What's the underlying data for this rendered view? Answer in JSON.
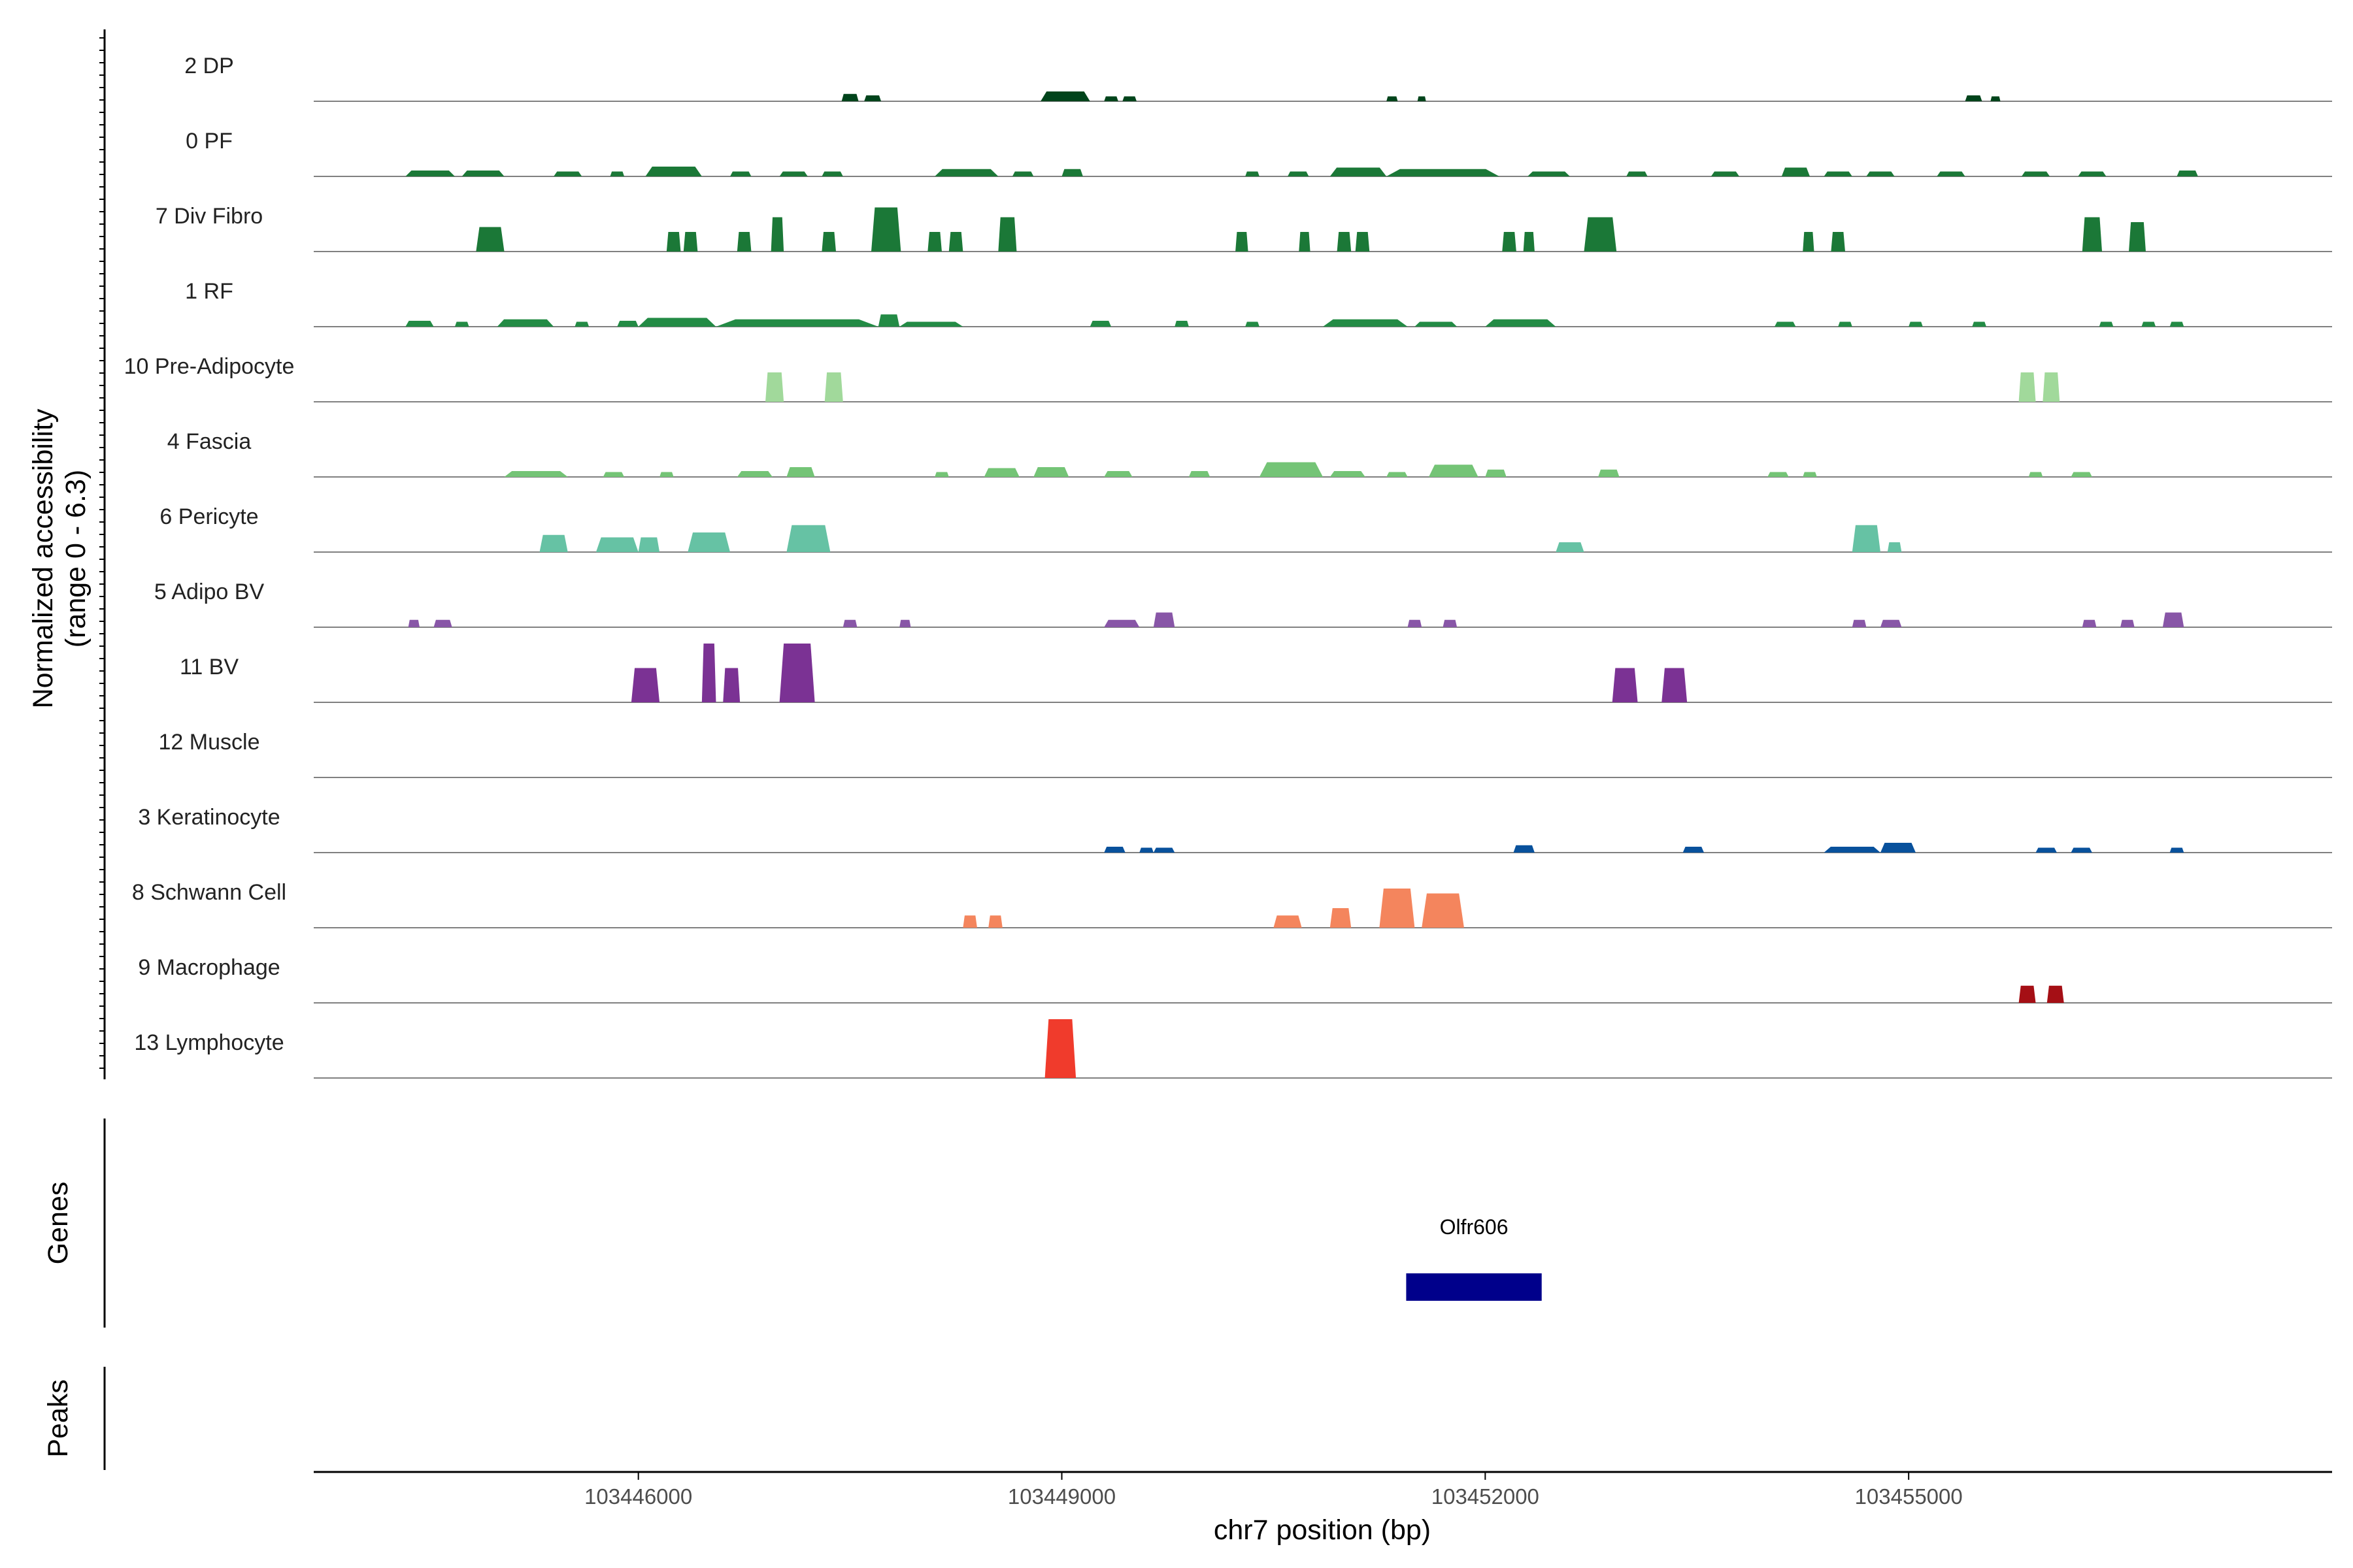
{
  "chart_data": {
    "type": "area",
    "title": "",
    "xlabel": "chr7 position (bp)",
    "ylabel": "Normalized accessibility",
    "ylabel_range": "(range 0 - 6.3)",
    "xlim": [
      103443700,
      103458000
    ],
    "ylim": [
      0,
      6.3
    ],
    "x_ticks": [
      103446000,
      103449000,
      103452000,
      103455000
    ],
    "x_tick_labels": [
      "103446000",
      "103449000",
      "103452000",
      "103455000"
    ],
    "grid": false,
    "legend": "none",
    "panel_labels": {
      "genes": "Genes",
      "peaks": "Peaks"
    },
    "tracks": [
      {
        "name": "2 DP",
        "color": "#00441b",
        "peaks": [
          [
            103447440,
            103447560,
            0.15
          ],
          [
            103447600,
            103447720,
            0.12
          ],
          [
            103448850,
            103449200,
            0.2
          ],
          [
            103449300,
            103449400,
            0.1
          ],
          [
            103449430,
            103449530,
            0.1
          ],
          [
            103451300,
            103451380,
            0.1
          ],
          [
            103451520,
            103451580,
            0.1
          ],
          [
            103455400,
            103455520,
            0.12
          ],
          [
            103455580,
            103455650,
            0.1
          ]
        ]
      },
      {
        "name": "0 PF",
        "color": "#1b7837",
        "peaks": [
          [
            103444350,
            103444700,
            0.12
          ],
          [
            103444750,
            103445050,
            0.12
          ],
          [
            103445400,
            103445600,
            0.1
          ],
          [
            103445800,
            103445900,
            0.1
          ],
          [
            103446050,
            103446450,
            0.2
          ],
          [
            103446650,
            103446800,
            0.1
          ],
          [
            103447000,
            103447200,
            0.1
          ],
          [
            103447300,
            103447450,
            0.1
          ],
          [
            103448100,
            103448550,
            0.15
          ],
          [
            103448650,
            103448800,
            0.1
          ],
          [
            103449000,
            103449150,
            0.15
          ],
          [
            103450300,
            103450400,
            0.1
          ],
          [
            103450600,
            103450750,
            0.1
          ],
          [
            103450900,
            103451300,
            0.18
          ],
          [
            103451300,
            103452100,
            0.15
          ],
          [
            103452300,
            103452600,
            0.1
          ],
          [
            103453000,
            103453150,
            0.1
          ],
          [
            103453600,
            103453800,
            0.1
          ],
          [
            103454100,
            103454300,
            0.18
          ],
          [
            103454400,
            103454600,
            0.1
          ],
          [
            103454700,
            103454900,
            0.1
          ],
          [
            103455200,
            103455400,
            0.1
          ],
          [
            103455800,
            103456000,
            0.1
          ],
          [
            103456200,
            103456400,
            0.1
          ],
          [
            103456900,
            103457050,
            0.12
          ]
        ]
      },
      {
        "name": "7 Div Fibro",
        "color": "#1b7837",
        "peaks": [
          [
            103444850,
            103445050,
            0.5
          ],
          [
            103446200,
            103446300,
            0.4
          ],
          [
            103446320,
            103446420,
            0.4
          ],
          [
            103446700,
            103446800,
            0.4
          ],
          [
            103446940,
            103447030,
            0.7
          ],
          [
            103447300,
            103447400,
            0.4
          ],
          [
            103447650,
            103447860,
            0.9
          ],
          [
            103448050,
            103448150,
            0.4
          ],
          [
            103448200,
            103448300,
            0.4
          ],
          [
            103448550,
            103448680,
            0.7
          ],
          [
            103450230,
            103450320,
            0.4
          ],
          [
            103450680,
            103450760,
            0.4
          ],
          [
            103450950,
            103451050,
            0.4
          ],
          [
            103451080,
            103451180,
            0.4
          ],
          [
            103452120,
            103452220,
            0.4
          ],
          [
            103452270,
            103452350,
            0.4
          ],
          [
            103452700,
            103452930,
            0.7
          ],
          [
            103454250,
            103454330,
            0.4
          ],
          [
            103454450,
            103454550,
            0.4
          ],
          [
            103456230,
            103456370,
            0.7
          ],
          [
            103456560,
            103456680,
            0.6
          ]
        ]
      },
      {
        "name": "1 RF",
        "color": "#238b45",
        "peaks": [
          [
            103444350,
            103444550,
            0.12
          ],
          [
            103444700,
            103444800,
            0.1
          ],
          [
            103445000,
            103445400,
            0.15
          ],
          [
            103445550,
            103445650,
            0.1
          ],
          [
            103445850,
            103446000,
            0.12
          ],
          [
            103446000,
            103446550,
            0.18
          ],
          [
            103446550,
            103447700,
            0.15
          ],
          [
            103447700,
            103447850,
            0.25
          ],
          [
            103447850,
            103448300,
            0.1
          ],
          [
            103449200,
            103449350,
            0.12
          ],
          [
            103449800,
            103449900,
            0.12
          ],
          [
            103450300,
            103450400,
            0.1
          ],
          [
            103450850,
            103451450,
            0.15
          ],
          [
            103451500,
            103451800,
            0.1
          ],
          [
            103452000,
            103452500,
            0.15
          ],
          [
            103454050,
            103454200,
            0.1
          ],
          [
            103454500,
            103454600,
            0.1
          ],
          [
            103455000,
            103455100,
            0.1
          ],
          [
            103455450,
            103455550,
            0.1
          ],
          [
            103456350,
            103456450,
            0.1
          ],
          [
            103456650,
            103456750,
            0.1
          ],
          [
            103456850,
            103456950,
            0.1
          ]
        ]
      },
      {
        "name": "10 Pre-Adipocyte",
        "color": "#a1d99b",
        "peaks": [
          [
            103446900,
            103447030,
            0.6
          ],
          [
            103447320,
            103447450,
            0.6
          ],
          [
            103455780,
            103455900,
            0.6
          ],
          [
            103455950,
            103456070,
            0.6
          ]
        ]
      },
      {
        "name": "4 Fascia",
        "color": "#74c476",
        "peaks": [
          [
            103445050,
            103445500,
            0.12
          ],
          [
            103445750,
            103445900,
            0.1
          ],
          [
            103446150,
            103446250,
            0.1
          ],
          [
            103446700,
            103446950,
            0.12
          ],
          [
            103447050,
            103447250,
            0.2
          ],
          [
            103448100,
            103448200,
            0.1
          ],
          [
            103448450,
            103448700,
            0.18
          ],
          [
            103448800,
            103449050,
            0.2
          ],
          [
            103449300,
            103449500,
            0.12
          ],
          [
            103449900,
            103450050,
            0.12
          ],
          [
            103450400,
            103450850,
            0.3
          ],
          [
            103450900,
            103451150,
            0.12
          ],
          [
            103451300,
            103451450,
            0.1
          ],
          [
            103451600,
            103451950,
            0.25
          ],
          [
            103452000,
            103452150,
            0.15
          ],
          [
            103452800,
            103452950,
            0.15
          ],
          [
            103454000,
            103454150,
            0.1
          ],
          [
            103454250,
            103454350,
            0.1
          ],
          [
            103455850,
            103455950,
            0.1
          ],
          [
            103456150,
            103456300,
            0.1
          ]
        ]
      },
      {
        "name": "6 Pericyte",
        "color": "#66c2a4",
        "peaks": [
          [
            103445300,
            103445500,
            0.35
          ],
          [
            103445700,
            103446000,
            0.3
          ],
          [
            103446000,
            103446150,
            0.3
          ],
          [
            103446350,
            103446650,
            0.4
          ],
          [
            103447050,
            103447360,
            0.55
          ],
          [
            103452500,
            103452700,
            0.2
          ],
          [
            103454600,
            103454800,
            0.55
          ],
          [
            103454850,
            103454950,
            0.2
          ]
        ]
      },
      {
        "name": "5 Adipo BV",
        "color": "#8856a7",
        "peaks": [
          [
            103444370,
            103444450,
            0.15
          ],
          [
            103444550,
            103444680,
            0.15
          ],
          [
            103447450,
            103447550,
            0.15
          ],
          [
            103447850,
            103447930,
            0.15
          ],
          [
            103449300,
            103449550,
            0.15
          ],
          [
            103449650,
            103449800,
            0.3
          ],
          [
            103451450,
            103451550,
            0.15
          ],
          [
            103451700,
            103451800,
            0.15
          ],
          [
            103454600,
            103454700,
            0.15
          ],
          [
            103454800,
            103454950,
            0.15
          ],
          [
            103456230,
            103456330,
            0.15
          ],
          [
            103456500,
            103456600,
            0.15
          ],
          [
            103456800,
            103456950,
            0.3
          ]
        ]
      },
      {
        "name": "11 BV",
        "color": "#7b3294",
        "peaks": [
          [
            103445950,
            103446150,
            0.7
          ],
          [
            103446450,
            103446550,
            1.2
          ],
          [
            103446600,
            103446720,
            0.7
          ],
          [
            103447000,
            103447250,
            1.2
          ],
          [
            103452900,
            103453080,
            0.7
          ],
          [
            103453250,
            103453430,
            0.7
          ]
        ]
      },
      {
        "name": "12 Muscle",
        "color": "#7b3294",
        "peaks": []
      },
      {
        "name": "3 Keratinocyte",
        "color": "#08519c",
        "peaks": [
          [
            103449300,
            103449450,
            0.12
          ],
          [
            103449550,
            103449650,
            0.1
          ],
          [
            103449650,
            103449800,
            0.1
          ],
          [
            103452200,
            103452350,
            0.15
          ],
          [
            103453400,
            103453550,
            0.12
          ],
          [
            103454400,
            103454800,
            0.12
          ],
          [
            103454800,
            103455050,
            0.2
          ],
          [
            103455900,
            103456050,
            0.1
          ],
          [
            103456150,
            103456300,
            0.1
          ],
          [
            103456850,
            103456950,
            0.1
          ]
        ]
      },
      {
        "name": "8 Schwann Cell",
        "color": "#f4855d",
        "peaks": [
          [
            103448300,
            103448400,
            0.25
          ],
          [
            103448480,
            103448580,
            0.25
          ],
          [
            103450500,
            103450700,
            0.25
          ],
          [
            103450900,
            103451050,
            0.4
          ],
          [
            103451250,
            103451500,
            0.8
          ],
          [
            103451550,
            103451850,
            0.7
          ]
        ]
      },
      {
        "name": "9 Macrophage",
        "color": "#a50f15",
        "peaks": [
          [
            103455780,
            103455900,
            0.35
          ],
          [
            103455980,
            103456100,
            0.35
          ]
        ]
      },
      {
        "name": "13 Lymphocyte",
        "color": "#f03b2c",
        "peaks": [
          [
            103448880,
            103449100,
            1.2
          ]
        ]
      }
    ],
    "genes": [
      {
        "name": "Olfr606",
        "start": 103451440,
        "end": 103452400,
        "color": "#00008b"
      }
    ]
  }
}
